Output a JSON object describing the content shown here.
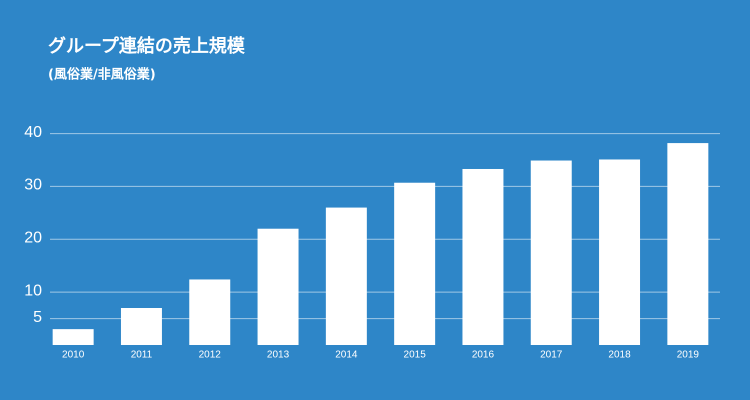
{
  "chart_data": {
    "type": "bar",
    "title": "グループ連結の売上規模",
    "subtitle": "(風俗業/非風俗業)",
    "categories": [
      "2010",
      "2011",
      "2012",
      "2013",
      "2014",
      "2015",
      "2016",
      "2017",
      "2018",
      "2019"
    ],
    "values": [
      3,
      7,
      12.4,
      22,
      26,
      30.7,
      33.3,
      34.9,
      35.1,
      38.2
    ],
    "color": "#ffffff",
    "ylim": [
      0,
      42
    ],
    "yticks": [
      5,
      10,
      20,
      30,
      40
    ],
    "grid": true
  }
}
